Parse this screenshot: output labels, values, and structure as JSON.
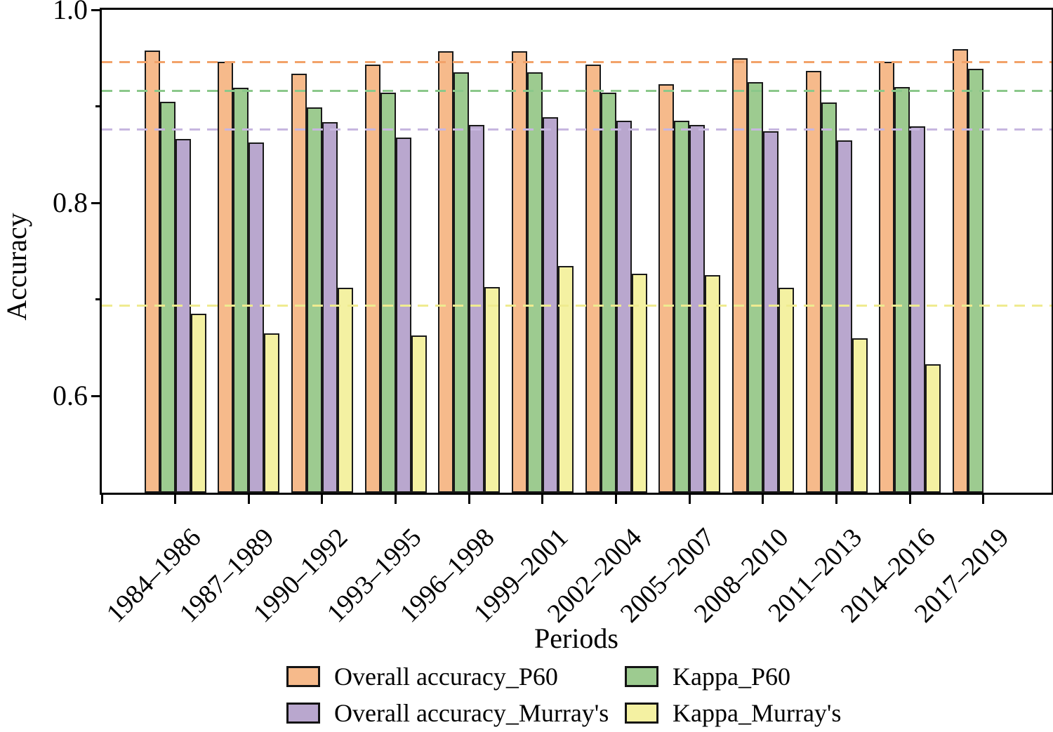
{
  "figure": {
    "background": "#ffffff",
    "frame_color": "#000000",
    "bar_edge_color": "#1a1a1a"
  },
  "chart_data": {
    "type": "bar",
    "title": "",
    "xlabel": "Periods",
    "ylabel": "Accuracy",
    "ylim": [
      0.5,
      1.0
    ],
    "grid": false,
    "legend_position": "bottom-center",
    "legend_columns": 2,
    "yticks": [
      {
        "value": 1.0,
        "label": "1.0"
      },
      {
        "value": 0.8,
        "label": "0.8"
      },
      {
        "value": 0.6,
        "label": "0.6"
      }
    ],
    "yticks_minor": [
      0.9,
      0.7
    ],
    "categories": [
      "1984–1986",
      "1987–1989",
      "1990–1992",
      "1993–1995",
      "1996–1998",
      "1999–2001",
      "2002–2004",
      "2005–2007",
      "2008–2010",
      "2011–2013",
      "2014–2016",
      "2017–2019"
    ],
    "series": [
      {
        "name": "Overall accuracy_P60",
        "color": "#F6BA8B",
        "mean_line": 0.946,
        "mean_line_color": "#F2A269",
        "values": [
          0.958,
          0.946,
          0.934,
          0.943,
          0.957,
          0.957,
          0.943,
          0.923,
          0.95,
          0.937,
          0.946,
          0.959
        ]
      },
      {
        "name": "Kappa_P60",
        "color": "#9DCB90",
        "mean_line": 0.916,
        "mean_line_color": "#8BC88A",
        "values": [
          0.905,
          0.919,
          0.899,
          0.914,
          0.935,
          0.935,
          0.914,
          0.885,
          0.925,
          0.904,
          0.92,
          0.939
        ]
      },
      {
        "name": "Overall accuracy_Murray's",
        "color": "#B9A7CE",
        "mean_line": 0.876,
        "mean_line_color": "#C7B6E0",
        "values": [
          0.866,
          0.863,
          0.884,
          0.868,
          0.881,
          0.889,
          0.885,
          0.881,
          0.874,
          0.865,
          0.879,
          null
        ]
      },
      {
        "name": "Kappa_Murray's",
        "color": "#F4F1A2",
        "mean_line": 0.694,
        "mean_line_color": "#EFEB90",
        "values": [
          0.685,
          0.665,
          0.712,
          0.663,
          0.713,
          0.735,
          0.727,
          0.725,
          0.712,
          0.66,
          0.633,
          null
        ]
      }
    ]
  }
}
